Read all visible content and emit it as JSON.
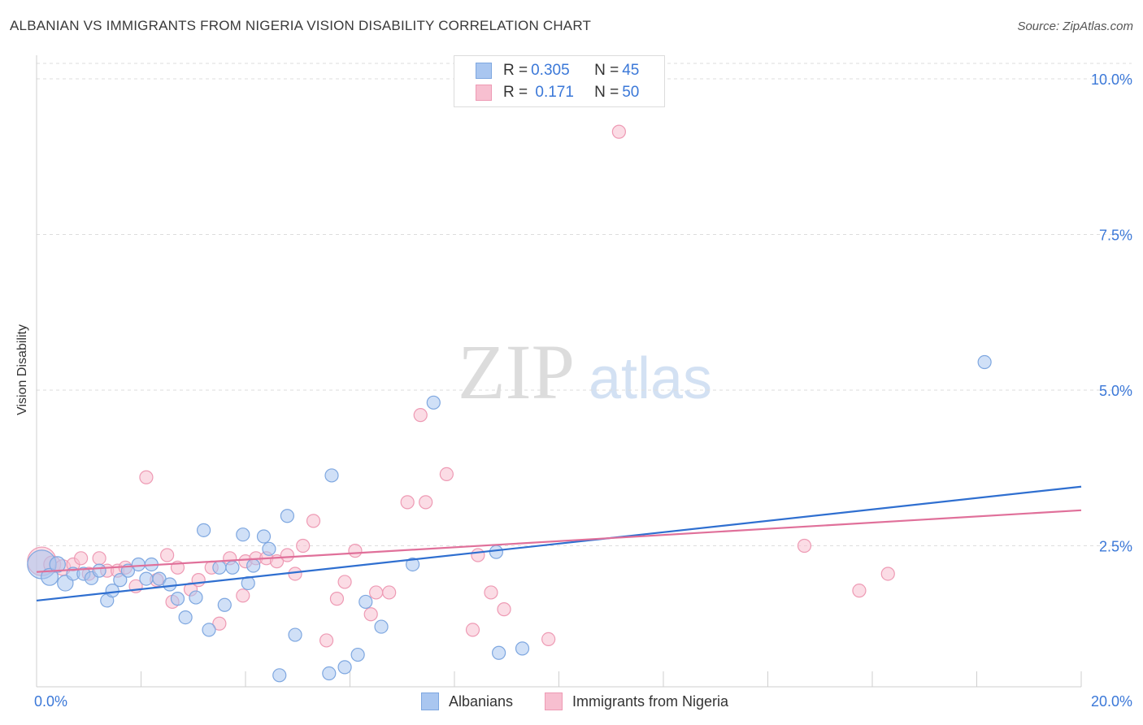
{
  "header": {
    "title": "ALBANIAN VS IMMIGRANTS FROM NIGERIA VISION DISABILITY CORRELATION CHART",
    "source": "Source: ZipAtlas.com"
  },
  "watermark": {
    "zip": "ZIP",
    "atlas": "atlas"
  },
  "legend_top": {
    "rows": [
      {
        "r_label": "R = ",
        "r_value": "0.305",
        "n_label": "N = ",
        "n_value": "45"
      },
      {
        "r_label": "R = ",
        "r_value": " 0.171",
        "n_label": "N = ",
        "n_value": "50"
      }
    ]
  },
  "legend_bottom": {
    "series_a": "Albanians",
    "series_b": "Immigrants from Nigeria"
  },
  "colors": {
    "albanians_fill": "#a9c6f0",
    "albanians_stroke": "#7ea7e0",
    "albanians_line": "#2f6fd0",
    "nigeria_fill": "#f7bfd0",
    "nigeria_stroke": "#ee9ab4",
    "nigeria_line": "#e0709a",
    "tick_text": "#3b78d8",
    "grid": "#dddddd"
  },
  "chart_data": {
    "type": "scatter",
    "xlabel": "",
    "ylabel": "Vision Disability",
    "xlim": [
      0,
      20
    ],
    "ylim": [
      0,
      10.5
    ],
    "x_tick_labels": [
      {
        "value": 0,
        "label": "0.0%"
      },
      {
        "value": 20,
        "label": "20.0%"
      }
    ],
    "y_tick_labels": [
      {
        "value": 2.5,
        "label": "2.5%"
      },
      {
        "value": 5.0,
        "label": "5.0%"
      },
      {
        "value": 7.5,
        "label": "7.5%"
      },
      {
        "value": 10.0,
        "label": "10.0%"
      }
    ],
    "grid": true,
    "legend_position": "top-center",
    "series": [
      {
        "name": "Albanians",
        "r": 0.305,
        "n": 45,
        "trend": {
          "x": [
            0,
            20
          ],
          "y": [
            1.62,
            3.45
          ]
        },
        "points": [
          {
            "x": 0.1,
            "y": 2.2,
            "s": 22
          },
          {
            "x": 0.25,
            "y": 2.0,
            "s": 13
          },
          {
            "x": 0.4,
            "y": 2.2,
            "s": 12
          },
          {
            "x": 0.55,
            "y": 1.9,
            "s": 12
          },
          {
            "x": 0.7,
            "y": 2.05,
            "s": 10
          },
          {
            "x": 0.9,
            "y": 2.05,
            "s": 10
          },
          {
            "x": 1.05,
            "y": 1.98,
            "s": 10
          },
          {
            "x": 1.2,
            "y": 2.1,
            "s": 10
          },
          {
            "x": 1.35,
            "y": 1.62,
            "s": 10
          },
          {
            "x": 1.45,
            "y": 1.78,
            "s": 10
          },
          {
            "x": 1.6,
            "y": 1.95,
            "s": 10
          },
          {
            "x": 1.75,
            "y": 2.1,
            "s": 10
          },
          {
            "x": 1.95,
            "y": 2.2,
            "s": 10
          },
          {
            "x": 2.1,
            "y": 1.97,
            "s": 10
          },
          {
            "x": 2.2,
            "y": 2.2,
            "s": 10
          },
          {
            "x": 2.35,
            "y": 1.97,
            "s": 10
          },
          {
            "x": 2.55,
            "y": 1.88,
            "s": 10
          },
          {
            "x": 2.7,
            "y": 1.65,
            "s": 10
          },
          {
            "x": 2.85,
            "y": 1.35,
            "s": 10
          },
          {
            "x": 3.05,
            "y": 1.67,
            "s": 10
          },
          {
            "x": 3.2,
            "y": 2.75,
            "s": 10
          },
          {
            "x": 3.3,
            "y": 1.15,
            "s": 10
          },
          {
            "x": 3.5,
            "y": 2.15,
            "s": 10
          },
          {
            "x": 3.6,
            "y": 1.55,
            "s": 10
          },
          {
            "x": 3.75,
            "y": 2.15,
            "s": 10
          },
          {
            "x": 3.95,
            "y": 2.68,
            "s": 10
          },
          {
            "x": 4.05,
            "y": 1.9,
            "s": 10
          },
          {
            "x": 4.15,
            "y": 2.18,
            "s": 10
          },
          {
            "x": 4.35,
            "y": 2.65,
            "s": 10
          },
          {
            "x": 4.45,
            "y": 2.45,
            "s": 10
          },
          {
            "x": 4.65,
            "y": 0.42,
            "s": 10
          },
          {
            "x": 4.8,
            "y": 2.98,
            "s": 10
          },
          {
            "x": 4.95,
            "y": 1.07,
            "s": 10
          },
          {
            "x": 5.65,
            "y": 3.63,
            "s": 10
          },
          {
            "x": 5.6,
            "y": 0.45,
            "s": 10
          },
          {
            "x": 5.9,
            "y": 0.55,
            "s": 10
          },
          {
            "x": 6.15,
            "y": 0.75,
            "s": 10
          },
          {
            "x": 6.3,
            "y": 1.6,
            "s": 10
          },
          {
            "x": 6.6,
            "y": 1.2,
            "s": 10
          },
          {
            "x": 7.2,
            "y": 2.2,
            "s": 10
          },
          {
            "x": 7.6,
            "y": 4.8,
            "s": 10
          },
          {
            "x": 8.85,
            "y": 0.78,
            "s": 10
          },
          {
            "x": 8.8,
            "y": 2.4,
            "s": 10
          },
          {
            "x": 9.3,
            "y": 0.85,
            "s": 10
          },
          {
            "x": 18.15,
            "y": 5.45,
            "s": 10
          }
        ]
      },
      {
        "name": "Immigrants from Nigeria",
        "r": 0.171,
        "n": 50,
        "trend": {
          "x": [
            0,
            20
          ],
          "y": [
            2.08,
            3.07
          ]
        },
        "points": [
          {
            "x": 0.1,
            "y": 2.25,
            "s": 22
          },
          {
            "x": 0.3,
            "y": 2.2,
            "s": 13
          },
          {
            "x": 0.5,
            "y": 2.15,
            "s": 12
          },
          {
            "x": 0.7,
            "y": 2.2,
            "s": 10
          },
          {
            "x": 0.85,
            "y": 2.3,
            "s": 10
          },
          {
            "x": 1.0,
            "y": 2.05,
            "s": 10
          },
          {
            "x": 1.2,
            "y": 2.3,
            "s": 10
          },
          {
            "x": 1.35,
            "y": 2.1,
            "s": 10
          },
          {
            "x": 1.55,
            "y": 2.1,
            "s": 10
          },
          {
            "x": 1.7,
            "y": 2.15,
            "s": 10
          },
          {
            "x": 1.9,
            "y": 1.85,
            "s": 10
          },
          {
            "x": 2.1,
            "y": 3.6,
            "s": 10
          },
          {
            "x": 2.3,
            "y": 1.95,
            "s": 10
          },
          {
            "x": 2.5,
            "y": 2.35,
            "s": 10
          },
          {
            "x": 2.6,
            "y": 1.6,
            "s": 10
          },
          {
            "x": 2.7,
            "y": 2.15,
            "s": 10
          },
          {
            "x": 2.95,
            "y": 1.8,
            "s": 10
          },
          {
            "x": 3.1,
            "y": 1.95,
            "s": 10
          },
          {
            "x": 3.35,
            "y": 2.15,
            "s": 10
          },
          {
            "x": 3.5,
            "y": 1.25,
            "s": 10
          },
          {
            "x": 3.7,
            "y": 2.3,
            "s": 10
          },
          {
            "x": 3.95,
            "y": 1.7,
            "s": 10
          },
          {
            "x": 4.0,
            "y": 2.25,
            "s": 10
          },
          {
            "x": 4.2,
            "y": 2.3,
            "s": 10
          },
          {
            "x": 4.4,
            "y": 2.3,
            "s": 10
          },
          {
            "x": 4.6,
            "y": 2.25,
            "s": 10
          },
          {
            "x": 4.8,
            "y": 2.35,
            "s": 10
          },
          {
            "x": 4.95,
            "y": 2.05,
            "s": 10
          },
          {
            "x": 5.1,
            "y": 2.5,
            "s": 10
          },
          {
            "x": 5.3,
            "y": 2.9,
            "s": 10
          },
          {
            "x": 5.55,
            "y": 0.98,
            "s": 10
          },
          {
            "x": 5.75,
            "y": 1.65,
            "s": 10
          },
          {
            "x": 5.9,
            "y": 1.92,
            "s": 10
          },
          {
            "x": 6.1,
            "y": 2.42,
            "s": 10
          },
          {
            "x": 6.4,
            "y": 1.4,
            "s": 10
          },
          {
            "x": 6.5,
            "y": 1.75,
            "s": 10
          },
          {
            "x": 6.75,
            "y": 1.75,
            "s": 10
          },
          {
            "x": 7.1,
            "y": 3.2,
            "s": 10
          },
          {
            "x": 7.35,
            "y": 4.6,
            "s": 10
          },
          {
            "x": 7.45,
            "y": 3.2,
            "s": 10
          },
          {
            "x": 7.85,
            "y": 3.65,
            "s": 10
          },
          {
            "x": 8.35,
            "y": 1.15,
            "s": 10
          },
          {
            "x": 8.45,
            "y": 2.35,
            "s": 10
          },
          {
            "x": 8.7,
            "y": 1.75,
            "s": 10
          },
          {
            "x": 8.95,
            "y": 1.48,
            "s": 10
          },
          {
            "x": 9.8,
            "y": 1.0,
            "s": 10
          },
          {
            "x": 11.15,
            "y": 9.15,
            "s": 10
          },
          {
            "x": 14.7,
            "y": 2.5,
            "s": 10
          },
          {
            "x": 15.75,
            "y": 1.78,
            "s": 10
          },
          {
            "x": 16.3,
            "y": 2.05,
            "s": 10
          }
        ]
      }
    ]
  }
}
